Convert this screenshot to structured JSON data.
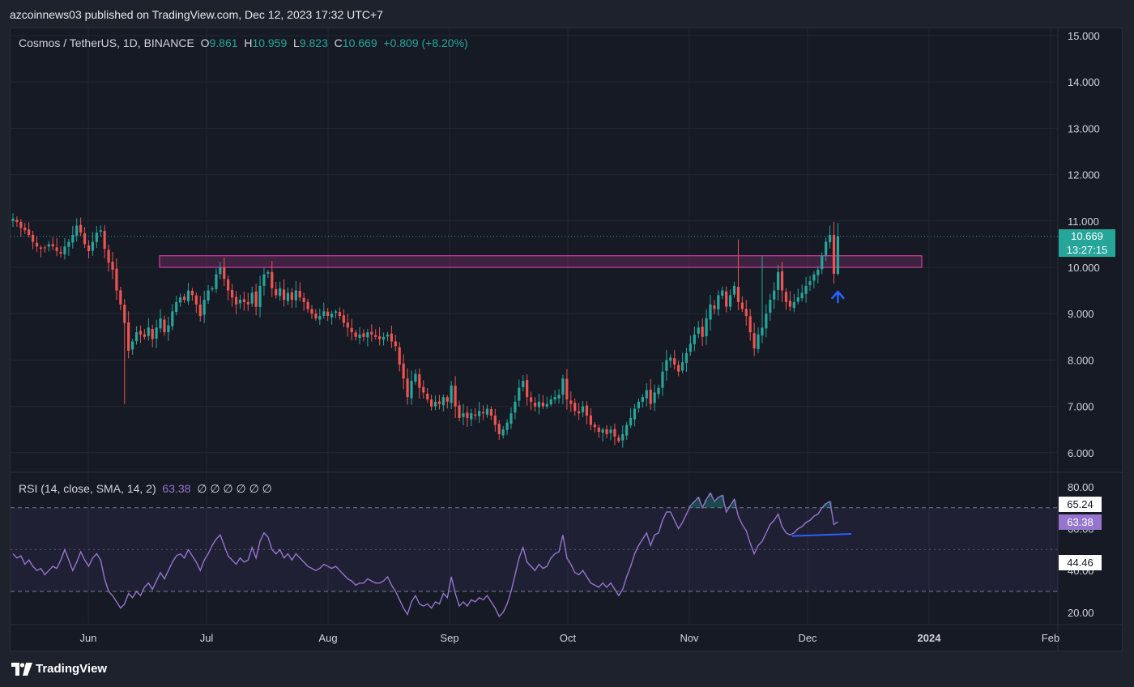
{
  "header": {
    "published_line": "azcoinnews03 published on TradingView.com, Dec 12, 2023 17:32 UTC+7"
  },
  "legend": {
    "symbol": "Cosmos / TetherUS, 1D, BINANCE",
    "o_label": "O",
    "o_value": "9.861",
    "h_label": "H",
    "h_value": "10.959",
    "l_label": "L",
    "l_value": "9.823",
    "c_label": "C",
    "c_value": "10.669",
    "change": "+0.809 (+8.20%)"
  },
  "rsi_legend": {
    "label": "RSI (14, close, SMA, 14, 2)",
    "value": "63.38",
    "placeholders": "∅ ∅ ∅ ∅ ∅ ∅"
  },
  "price_tag": {
    "price": "10.669",
    "countdown": "13:27:15"
  },
  "rsi_tags": {
    "upper": "65.24",
    "current": "63.38",
    "lower": "44.46"
  },
  "brand": {
    "name": "TradingView"
  },
  "colors": {
    "up": "#26a69a",
    "down": "#ef5350",
    "rsi": "#9575cd",
    "zone": "#d33fa0",
    "arrow": "#2962ff",
    "background": "#161a25"
  },
  "chart_data": [
    {
      "type": "candlestick",
      "title": "Cosmos / TetherUS, 1D, BINANCE",
      "x_tick_labels": [
        "Jun",
        "Jul",
        "Aug",
        "Sep",
        "Oct",
        "Nov",
        "Dec",
        "2024",
        "Feb"
      ],
      "y_tick_labels": [
        "15.000",
        "14.000",
        "13.000",
        "12.000",
        "11.000",
        "10.000",
        "9.000",
        "8.000",
        "7.000",
        "6.000"
      ],
      "ylim": [
        5.6,
        15.2
      ],
      "resistance_zone": {
        "x_start": "2023-06-19",
        "x_end": "2023-12-31",
        "y_low": 10.0,
        "y_high": 10.25
      },
      "current_price": 10.669,
      "last_candle": {
        "open": 9.861,
        "high": 10.959,
        "low": 9.823,
        "close": 10.669
      },
      "closes": [
        11.05,
        10.98,
        10.85,
        10.8,
        10.7,
        10.55,
        10.45,
        10.4,
        10.42,
        10.5,
        10.45,
        10.35,
        10.3,
        10.45,
        10.55,
        10.7,
        10.9,
        10.75,
        10.5,
        10.35,
        10.55,
        10.75,
        10.8,
        10.4,
        10.1,
        9.95,
        9.5,
        9.2,
        8.8,
        8.2,
        8.4,
        8.6,
        8.55,
        8.5,
        8.7,
        8.45,
        8.7,
        8.9,
        8.6,
        8.75,
        9.05,
        9.25,
        9.35,
        9.3,
        9.5,
        9.4,
        9.2,
        8.95,
        9.3,
        9.5,
        9.55,
        9.85,
        10.0,
        9.75,
        9.5,
        9.35,
        9.2,
        9.3,
        9.25,
        9.2,
        9.45,
        9.15,
        9.6,
        9.85,
        9.9,
        9.55,
        9.4,
        9.55,
        9.3,
        9.45,
        9.3,
        9.5,
        9.35,
        9.25,
        9.1,
        9.0,
        8.9,
        8.95,
        9.05,
        8.95,
        9.0,
        9.05,
        8.95,
        8.8,
        8.7,
        8.6,
        8.5,
        8.55,
        8.5,
        8.6,
        8.55,
        8.5,
        8.45,
        8.5,
        8.55,
        8.4,
        8.3,
        7.9,
        7.6,
        7.2,
        7.55,
        7.7,
        7.4,
        7.3,
        7.15,
        7.0,
        7.1,
        7.05,
        7.2,
        7.1,
        7.45,
        7.0,
        6.75,
        6.85,
        6.75,
        6.85,
        6.8,
        6.9,
        6.85,
        6.95,
        6.8,
        6.6,
        6.4,
        6.5,
        6.65,
        6.85,
        7.1,
        7.4,
        7.55,
        7.2,
        7.1,
        7.0,
        7.1,
        7.0,
        7.05,
        7.15,
        7.2,
        7.25,
        7.6,
        7.15,
        7.05,
        6.9,
        6.85,
        7.0,
        6.8,
        6.6,
        6.55,
        6.45,
        6.5,
        6.4,
        6.5,
        6.35,
        6.25,
        6.4,
        6.6,
        6.75,
        6.95,
        7.1,
        7.2,
        7.35,
        7.05,
        7.3,
        7.4,
        7.75,
        8.0,
        8.05,
        7.9,
        7.75,
        7.95,
        8.15,
        8.35,
        8.55,
        8.7,
        8.5,
        8.9,
        9.2,
        9.1,
        9.4,
        9.5,
        9.15,
        9.4,
        9.6,
        9.25,
        9.1,
        8.95,
        8.6,
        8.25,
        8.55,
        8.7,
        9.0,
        9.3,
        9.5,
        9.9,
        9.5,
        9.25,
        9.15,
        9.25,
        9.35,
        9.45,
        9.6,
        9.7,
        9.85,
        9.95,
        10.25,
        10.55,
        10.7,
        9.86,
        10.669
      ]
    },
    {
      "type": "line",
      "title": "RSI (14, close, SMA, 14, 2)",
      "y_tick_labels": [
        "80.00",
        "60.00",
        "40.00",
        "20.00"
      ],
      "ylim": [
        15,
        85
      ],
      "bands": [
        70,
        50,
        30
      ],
      "divergence_line": {
        "from": 56.5,
        "to": 57.5
      },
      "values": [
        48,
        46,
        47,
        43,
        45,
        42,
        40,
        41,
        38,
        40,
        42,
        41,
        45,
        50,
        45,
        40,
        44,
        49,
        45,
        42,
        46,
        48,
        45,
        36,
        30,
        28,
        25,
        22,
        24,
        29,
        27,
        30,
        28,
        32,
        34,
        31,
        35,
        39,
        36,
        40,
        44,
        47,
        48,
        46,
        50,
        47,
        44,
        40,
        45,
        48,
        52,
        55,
        57,
        52,
        47,
        45,
        43,
        46,
        44,
        45,
        51,
        46,
        54,
        58,
        56,
        50,
        48,
        50,
        46,
        48,
        45,
        48,
        46,
        44,
        42,
        41,
        40,
        41,
        43,
        42,
        41,
        42,
        40,
        38,
        36,
        35,
        33,
        34,
        34,
        36,
        35,
        34,
        34,
        35,
        37,
        33,
        30,
        26,
        22,
        19,
        25,
        28,
        24,
        23,
        24,
        22,
        25,
        24,
        29,
        27,
        37,
        29,
        23,
        25,
        23,
        26,
        25,
        27,
        26,
        28,
        25,
        22,
        18,
        20,
        24,
        30,
        38,
        46,
        51,
        44,
        42,
        40,
        43,
        41,
        42,
        46,
        48,
        49,
        57,
        46,
        43,
        39,
        38,
        40,
        37,
        34,
        33,
        32,
        34,
        32,
        34,
        31,
        28,
        31,
        37,
        42,
        48,
        52,
        55,
        58,
        52,
        57,
        58,
        64,
        68,
        68,
        64,
        60,
        63,
        67,
        71,
        73,
        75,
        70,
        74,
        77,
        73,
        75,
        76,
        68,
        71,
        74,
        66,
        62,
        59,
        53,
        48,
        52,
        54,
        58,
        62,
        64,
        67,
        61,
        58,
        57,
        58,
        60,
        61,
        63,
        64,
        66,
        67,
        70,
        72,
        73,
        62,
        63.38
      ]
    }
  ]
}
